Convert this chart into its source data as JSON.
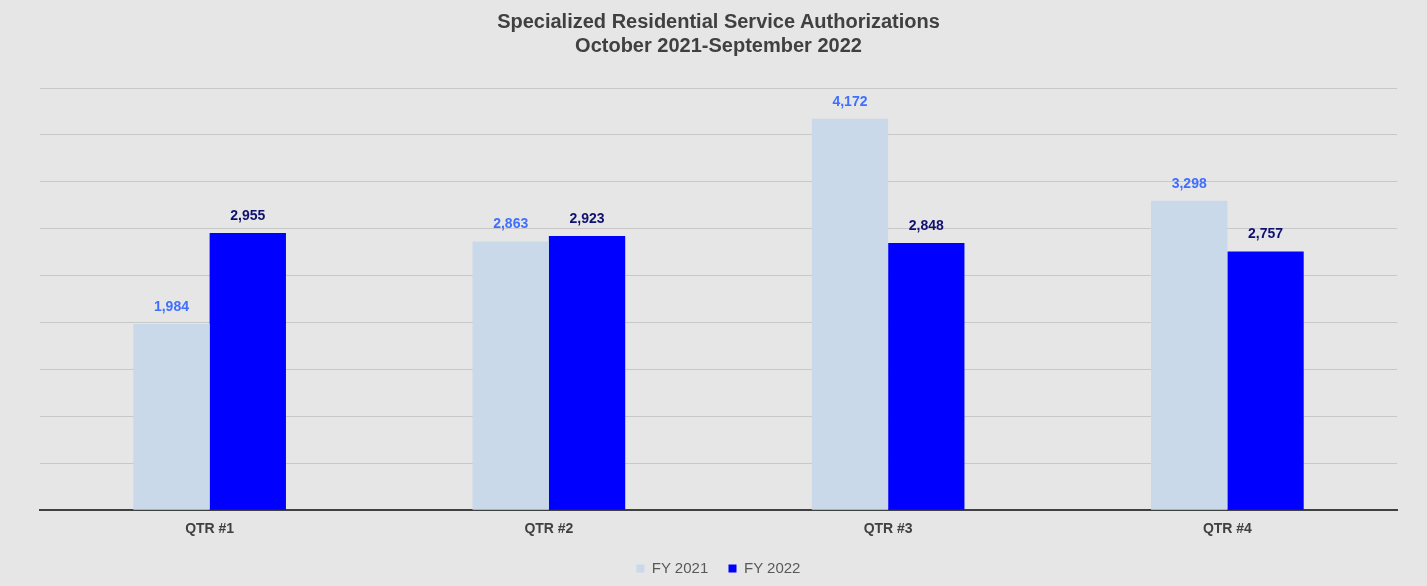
{
  "chart_data": {
    "type": "bar",
    "title": "Specialized Residential Service Authorizations",
    "subtitle": "October 2021-September 2022",
    "categories": [
      "QTR #1",
      "QTR #2",
      "QTR #3",
      "QTR #4"
    ],
    "series": [
      {
        "name": "FY 2021",
        "color": "#c9d9ea",
        "values": [
          1984,
          2863,
          4172,
          3298
        ],
        "value_labels": [
          "1,984",
          "2,863",
          "4,172",
          "3,298"
        ]
      },
      {
        "name": "FY 2022",
        "color": "#0000ff",
        "values": [
          2955,
          2923,
          2848,
          2757
        ],
        "value_labels": [
          "2,955",
          "2,923",
          "2,848",
          "2,757"
        ]
      }
    ],
    "tick_labels": "x",
    "grid": "y",
    "legend": "bottom"
  }
}
